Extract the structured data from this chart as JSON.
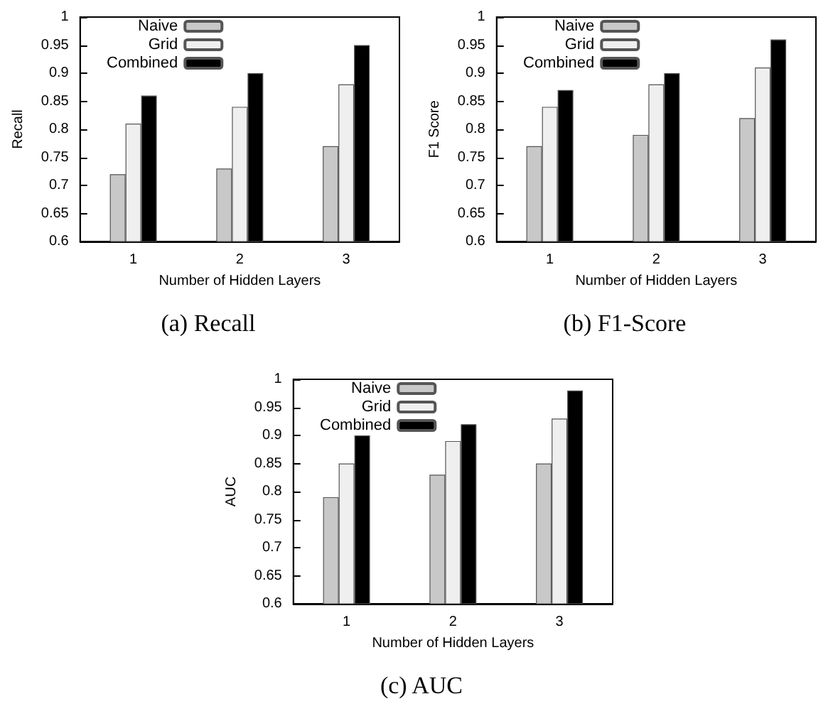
{
  "chart_data": [
    {
      "type": "bar",
      "xlabel": "Number of Hidden Layers",
      "ylabel": "Recall",
      "categories": [
        "1",
        "2",
        "3"
      ],
      "ylim": [
        0.6,
        1
      ],
      "yticks": [
        0.6,
        0.65,
        0.7,
        0.75,
        0.8,
        0.85,
        0.9,
        0.95,
        1
      ],
      "legend": "top left",
      "annotations": [
        "(a) Recall"
      ],
      "series": [
        {
          "name": "Naive",
          "color": "#c8c8c8",
          "values": [
            0.72,
            0.73,
            0.77
          ]
        },
        {
          "name": "Grid",
          "color": "#efefef",
          "values": [
            0.81,
            0.84,
            0.88
          ]
        },
        {
          "name": "Combined",
          "color": "#000000",
          "values": [
            0.86,
            0.9,
            0.95
          ]
        }
      ]
    },
    {
      "type": "bar",
      "xlabel": "Number of Hidden Layers",
      "ylabel": "F1 Score",
      "categories": [
        "1",
        "2",
        "3"
      ],
      "ylim": [
        0.6,
        1
      ],
      "yticks": [
        0.6,
        0.65,
        0.7,
        0.75,
        0.8,
        0.85,
        0.9,
        0.95,
        1
      ],
      "legend": "top left",
      "annotations": [
        "(b) F1-Score"
      ],
      "series": [
        {
          "name": "Naive",
          "color": "#c8c8c8",
          "values": [
            0.77,
            0.79,
            0.82
          ]
        },
        {
          "name": "Grid",
          "color": "#efefef",
          "values": [
            0.84,
            0.88,
            0.91
          ]
        },
        {
          "name": "Combined",
          "color": "#000000",
          "values": [
            0.87,
            0.9,
            0.96
          ]
        }
      ]
    },
    {
      "type": "bar",
      "xlabel": "Number of Hidden Layers",
      "ylabel": "AUC",
      "categories": [
        "1",
        "2",
        "3"
      ],
      "ylim": [
        0.6,
        1
      ],
      "yticks": [
        0.6,
        0.65,
        0.7,
        0.75,
        0.8,
        0.85,
        0.9,
        0.95,
        1
      ],
      "legend": "top left",
      "annotations": [
        "(c) AUC"
      ],
      "series": [
        {
          "name": "Naive",
          "color": "#c8c8c8",
          "values": [
            0.79,
            0.83,
            0.85
          ]
        },
        {
          "name": "Grid",
          "color": "#efefef",
          "values": [
            0.85,
            0.89,
            0.93
          ]
        },
        {
          "name": "Combined",
          "color": "#000000",
          "values": [
            0.9,
            0.92,
            0.98
          ]
        }
      ]
    }
  ]
}
